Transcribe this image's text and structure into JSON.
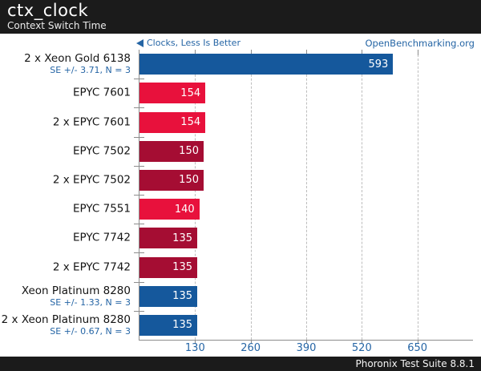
{
  "header": {
    "title": "ctx_clock",
    "subtitle": "Context Switch Time"
  },
  "meta": {
    "hint": "Clocks, Less Is Better",
    "site": "OpenBenchmarking.org"
  },
  "footer": {
    "text": "Phoronix Test Suite 8.8.1"
  },
  "colors": {
    "blue": "#15589c",
    "red": "#e8113c",
    "darkred": "#a50d33",
    "accent_text": "#2565a5",
    "axis": "#8c8c8c",
    "grid": "#bdbdbd",
    "header_bg": "#1b1b1b"
  },
  "chart_data": {
    "type": "bar",
    "orientation": "horizontal",
    "title": "ctx_clock",
    "subtitle": "Context Switch Time",
    "value_hint": "Clocks, Less Is Better",
    "xlabel": "",
    "ylabel": "",
    "xticks": [
      130,
      260,
      390,
      520,
      650
    ],
    "xlim": [
      0,
      780
    ],
    "grid": "dashed-vertical",
    "legend": "none",
    "rows": [
      {
        "label": "2 x Xeon Gold 6138",
        "se": "SE +/- 3.71, N = 3",
        "value": 593,
        "color": "blue"
      },
      {
        "label": "EPYC 7601",
        "se": "",
        "value": 154,
        "color": "red"
      },
      {
        "label": "2 x EPYC 7601",
        "se": "",
        "value": 154,
        "color": "red"
      },
      {
        "label": "EPYC 7502",
        "se": "",
        "value": 150,
        "color": "darkred"
      },
      {
        "label": "2 x EPYC 7502",
        "se": "",
        "value": 150,
        "color": "darkred"
      },
      {
        "label": "EPYC 7551",
        "se": "",
        "value": 140,
        "color": "red"
      },
      {
        "label": "EPYC 7742",
        "se": "",
        "value": 135,
        "color": "darkred"
      },
      {
        "label": "2 x EPYC 7742",
        "se": "",
        "value": 135,
        "color": "darkred"
      },
      {
        "label": "Xeon Platinum 8280",
        "se": "SE +/- 1.33, N = 3",
        "value": 135,
        "color": "blue"
      },
      {
        "label": "2 x Xeon Platinum 8280",
        "se": "SE +/- 0.67, N = 3",
        "value": 135,
        "color": "blue"
      }
    ]
  }
}
